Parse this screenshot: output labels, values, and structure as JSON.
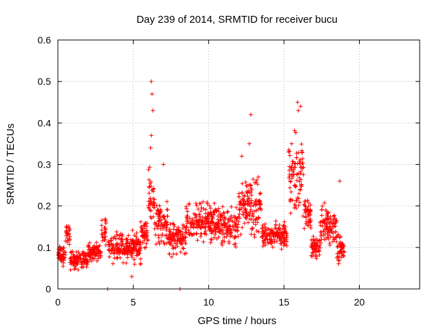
{
  "chart_data": {
    "type": "scatter",
    "title": "Day 239 of 2014, SRMTID for receiver bucu",
    "xlabel": "GPS time / hours",
    "ylabel": "SRMTID / TECUs",
    "xlim": [
      0,
      24
    ],
    "ylim": [
      0,
      0.6
    ],
    "x_ticks": [
      0,
      5,
      10,
      15,
      20
    ],
    "y_ticks": [
      0,
      0.1,
      0.2,
      0.3,
      0.4,
      0.5,
      0.6
    ],
    "x_tick_labels": [
      "0",
      "5",
      "10",
      "15",
      "20"
    ],
    "y_tick_labels": [
      "0",
      "0.1",
      "0.2",
      "0.3",
      "0.4",
      "0.5",
      "0.6"
    ],
    "grid": true,
    "marker": "+",
    "marker_color": "#ff0000",
    "series": [
      {
        "name": "SRMTID",
        "segments": [
          {
            "x0": 0.0,
            "x1": 0.5,
            "center": 0.08,
            "spread": 0.03
          },
          {
            "x0": 0.5,
            "x1": 0.8,
            "center": 0.13,
            "spread": 0.04
          },
          {
            "x0": 0.8,
            "x1": 2.0,
            "center": 0.07,
            "spread": 0.03
          },
          {
            "x0": 2.0,
            "x1": 2.9,
            "center": 0.09,
            "spread": 0.03
          },
          {
            "x0": 2.9,
            "x1": 3.2,
            "center": 0.14,
            "spread": 0.05
          },
          {
            "x0": 3.3,
            "x1": 5.5,
            "center": 0.1,
            "spread": 0.05
          },
          {
            "x0": 5.5,
            "x1": 6.0,
            "center": 0.13,
            "spread": 0.05
          },
          {
            "x0": 6.0,
            "x1": 6.4,
            "center": 0.22,
            "spread": 0.1
          },
          {
            "x0": 6.4,
            "x1": 7.3,
            "center": 0.16,
            "spread": 0.07
          },
          {
            "x0": 7.3,
            "x1": 8.5,
            "center": 0.12,
            "spread": 0.05
          },
          {
            "x0": 8.5,
            "x1": 10.5,
            "center": 0.16,
            "spread": 0.07
          },
          {
            "x0": 10.5,
            "x1": 12.0,
            "center": 0.15,
            "spread": 0.07
          },
          {
            "x0": 12.0,
            "x1": 13.5,
            "center": 0.2,
            "spread": 0.09
          },
          {
            "x0": 13.5,
            "x1": 15.2,
            "center": 0.13,
            "spread": 0.04
          },
          {
            "x0": 15.3,
            "x1": 16.3,
            "center": 0.28,
            "spread": 0.12
          },
          {
            "x0": 16.3,
            "x1": 16.8,
            "center": 0.18,
            "spread": 0.05
          },
          {
            "x0": 16.8,
            "x1": 17.4,
            "center": 0.1,
            "spread": 0.04
          },
          {
            "x0": 17.4,
            "x1": 18.5,
            "center": 0.15,
            "spread": 0.06
          },
          {
            "x0": 18.5,
            "x1": 19.0,
            "center": 0.1,
            "spread": 0.05
          }
        ],
        "points": [
          {
            "x": 3.3,
            "y": 0.0
          },
          {
            "x": 8.1,
            "y": 0.0
          },
          {
            "x": 6.2,
            "y": 0.5
          },
          {
            "x": 6.25,
            "y": 0.47
          },
          {
            "x": 6.3,
            "y": 0.43
          },
          {
            "x": 6.2,
            "y": 0.37
          },
          {
            "x": 6.15,
            "y": 0.34
          },
          {
            "x": 12.8,
            "y": 0.42
          },
          {
            "x": 12.7,
            "y": 0.35
          },
          {
            "x": 15.9,
            "y": 0.45
          },
          {
            "x": 16.1,
            "y": 0.44
          },
          {
            "x": 15.95,
            "y": 0.43
          },
          {
            "x": 12.2,
            "y": 0.32
          },
          {
            "x": 7.0,
            "y": 0.3
          },
          {
            "x": 18.7,
            "y": 0.26
          },
          {
            "x": 4.9,
            "y": 0.03
          }
        ]
      }
    ]
  }
}
